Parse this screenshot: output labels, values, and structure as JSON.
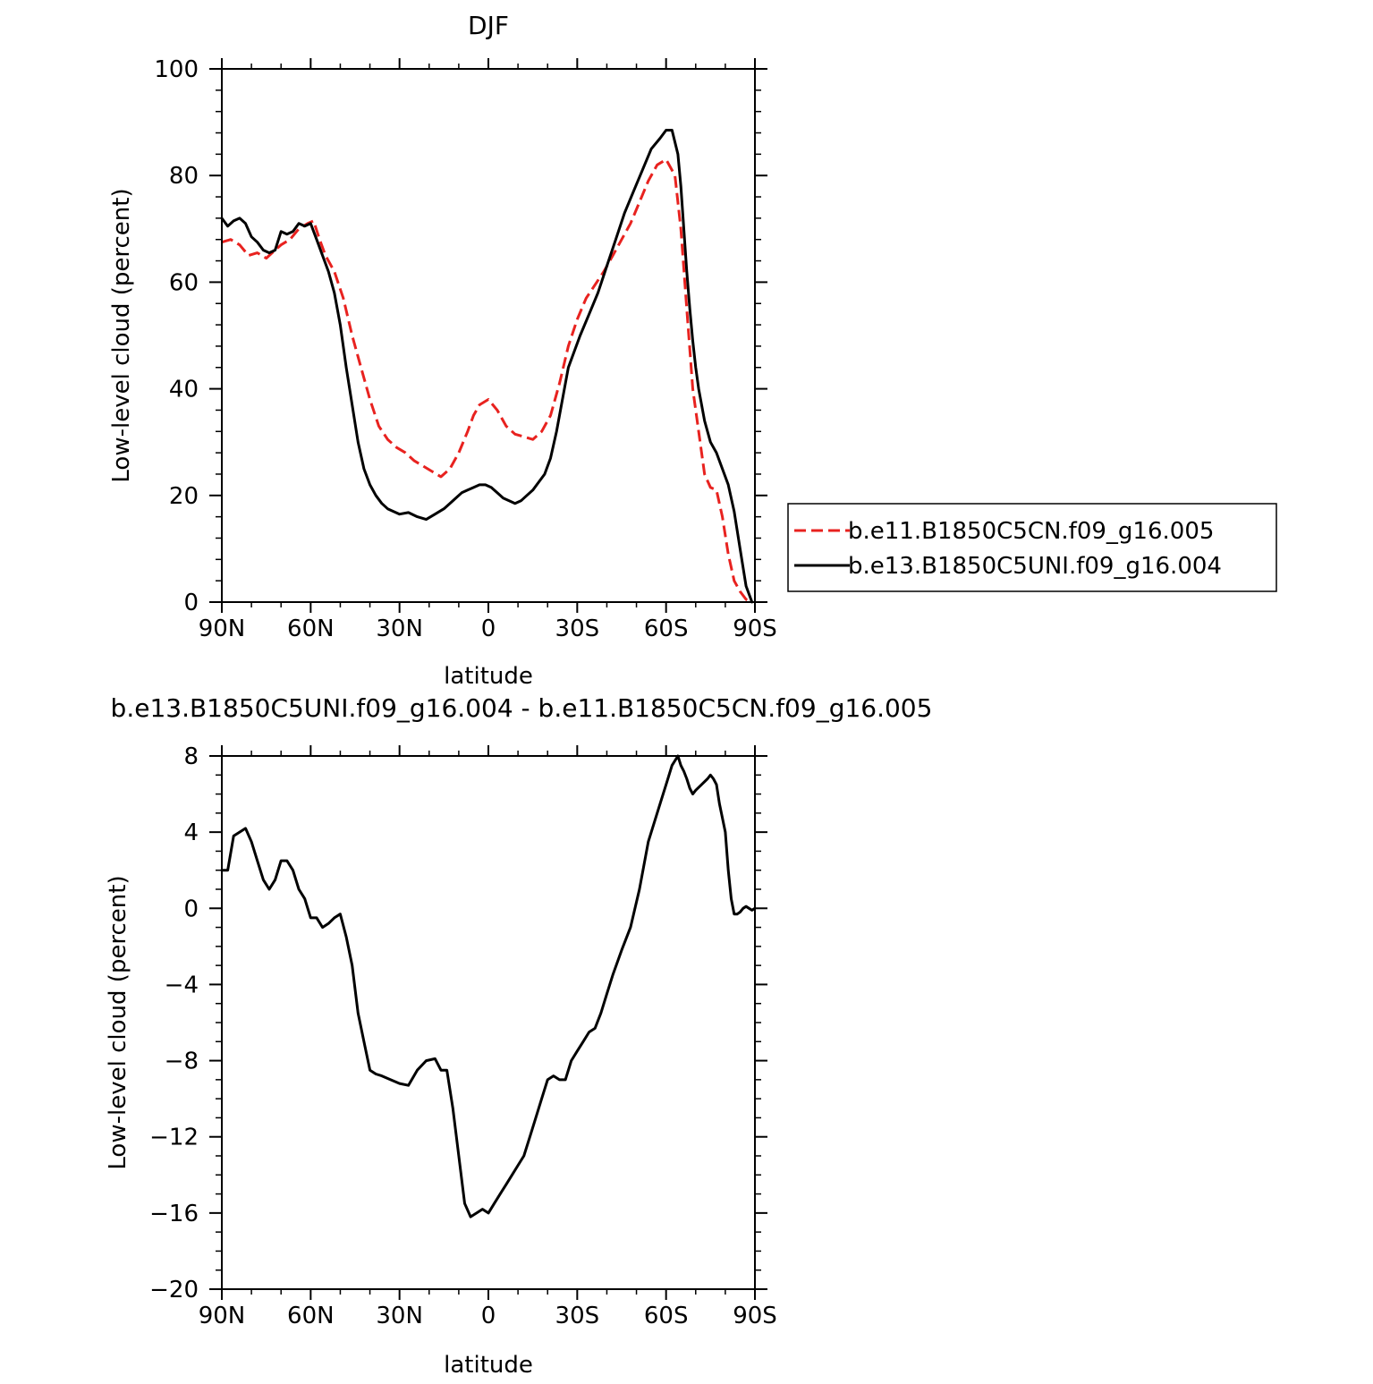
{
  "chart_data": [
    {
      "type": "line",
      "title": "DJF",
      "xlabel": "latitude",
      "ylabel": "Low-level cloud (percent)",
      "xlim": [
        90,
        -90
      ],
      "ylim": [
        0,
        100
      ],
      "x_ticks": [
        {
          "value": 90,
          "label": "90N"
        },
        {
          "value": 60,
          "label": "60N"
        },
        {
          "value": 30,
          "label": "30N"
        },
        {
          "value": 0,
          "label": "0"
        },
        {
          "value": -30,
          "label": "30S"
        },
        {
          "value": -60,
          "label": "60S"
        },
        {
          "value": -90,
          "label": "90S"
        }
      ],
      "y_ticks": [
        {
          "value": 0,
          "label": "0"
        },
        {
          "value": 20,
          "label": "20"
        },
        {
          "value": 40,
          "label": "40"
        },
        {
          "value": 60,
          "label": "60"
        },
        {
          "value": 80,
          "label": "80"
        },
        {
          "value": 100,
          "label": "100"
        }
      ],
      "legend_position": "right",
      "series": [
        {
          "name": "b.e11.B1850C5CN.f09_g16.005",
          "color": "#e8221f",
          "dash": "dashed",
          "x": [
            90,
            87,
            84,
            81,
            78,
            75,
            72,
            70,
            67,
            64,
            61,
            59,
            57,
            55,
            52,
            49,
            46,
            43,
            40,
            37,
            34,
            31,
            28,
            25,
            22,
            19,
            16,
            13,
            10,
            7,
            5,
            3,
            0,
            -3,
            -6,
            -9,
            -12,
            -15,
            -18,
            -21,
            -24,
            -27,
            -30,
            -33,
            -36,
            -39,
            -42,
            -45,
            -48,
            -51,
            -54,
            -57,
            -60,
            -63,
            -65,
            -67,
            -69,
            -71,
            -73,
            -75,
            -77,
            -79,
            -81,
            -83,
            -85,
            -87,
            -89
          ],
          "values": [
            67.5,
            68,
            67,
            65,
            65.5,
            64.5,
            66,
            67,
            68,
            70,
            71,
            71.5,
            68,
            65,
            62,
            57,
            50,
            44,
            38,
            33,
            30.5,
            29,
            28,
            26.5,
            25.5,
            24.5,
            23.5,
            25,
            28,
            32,
            35,
            37,
            38,
            36,
            33,
            31.5,
            31,
            30.5,
            32,
            35,
            41,
            48,
            53,
            57,
            59.5,
            62,
            65,
            68,
            71,
            75,
            79,
            82,
            83,
            80,
            70,
            55,
            40,
            32,
            24,
            21.5,
            21,
            16,
            9,
            4,
            2,
            0.5,
            0
          ]
        },
        {
          "name": "b.e13.B1850C5UNI.f09_g16.004",
          "color": "#000000",
          "dash": "solid",
          "x": [
            90,
            88,
            86,
            84,
            82,
            80,
            78,
            76,
            74,
            72,
            70,
            68,
            66,
            64,
            62,
            60,
            58,
            56,
            54,
            52,
            50,
            48,
            46,
            44,
            42,
            40,
            38,
            36,
            34,
            32,
            30,
            27,
            24,
            21,
            18,
            15,
            13,
            11,
            9,
            7,
            5,
            3,
            1,
            -1,
            -3,
            -5,
            -7,
            -9,
            -11,
            -13,
            -15,
            -17,
            -19,
            -21,
            -23,
            -25,
            -27,
            -29,
            -31,
            -34,
            -37,
            -40,
            -43,
            -46,
            -49,
            -52,
            -55,
            -58,
            -60,
            -62,
            -64,
            -65,
            -66,
            -67,
            -68,
            -69,
            -70,
            -71,
            -72,
            -73,
            -75,
            -77,
            -79,
            -81,
            -83,
            -85,
            -87,
            -89
          ],
          "values": [
            72,
            70.5,
            71.5,
            72,
            71,
            68.5,
            67.5,
            66,
            65.5,
            66,
            69.5,
            69,
            69.5,
            71,
            70.5,
            71,
            68,
            65,
            62,
            58,
            52,
            44,
            37,
            30,
            25,
            22,
            20,
            18.5,
            17.5,
            17,
            16.5,
            16.8,
            16,
            15.5,
            16.5,
            17.5,
            18.5,
            19.5,
            20.5,
            21,
            21.5,
            22,
            22,
            21.5,
            20.5,
            19.5,
            19,
            18.5,
            19,
            20,
            21,
            22.5,
            24,
            27,
            32,
            38,
            44,
            47,
            50,
            54,
            58,
            63,
            68,
            73,
            77,
            81,
            85,
            87,
            88.5,
            88.5,
            84,
            78,
            70,
            62,
            55,
            49,
            44,
            40,
            37,
            34,
            30,
            28,
            25,
            22,
            17,
            10,
            3,
            0
          ]
        }
      ]
    },
    {
      "type": "line",
      "title": "b.e13.B1850C5UNI.f09_g16.004 - b.e11.B1850C5CN.f09_g16.005",
      "xlabel": "latitude",
      "ylabel": "Low-level cloud (percent)",
      "xlim": [
        90,
        -90
      ],
      "ylim": [
        -20,
        8
      ],
      "x_ticks": [
        {
          "value": 90,
          "label": "90N"
        },
        {
          "value": 60,
          "label": "60N"
        },
        {
          "value": 30,
          "label": "30N"
        },
        {
          "value": 0,
          "label": "0"
        },
        {
          "value": -30,
          "label": "30S"
        },
        {
          "value": -60,
          "label": "60S"
        },
        {
          "value": -90,
          "label": "90S"
        }
      ],
      "y_ticks": [
        {
          "value": -20,
          "label": "−20"
        },
        {
          "value": -16,
          "label": "−16"
        },
        {
          "value": -12,
          "label": "−12"
        },
        {
          "value": -8,
          "label": "−8"
        },
        {
          "value": -4,
          "label": "−4"
        },
        {
          "value": 0,
          "label": "0"
        },
        {
          "value": 4,
          "label": "4"
        },
        {
          "value": 8,
          "label": "8"
        }
      ],
      "series": [
        {
          "color": "#000000",
          "dash": "solid",
          "x": [
            90,
            88,
            86,
            84,
            82,
            80,
            78,
            76,
            74,
            72,
            70,
            68,
            66,
            64,
            62,
            60,
            58,
            56,
            54,
            52,
            50,
            48,
            46,
            44,
            42,
            40,
            38,
            36,
            33,
            30,
            27,
            24,
            21,
            18,
            16,
            14,
            12,
            10,
            8,
            6,
            4,
            2,
            0,
            -2,
            -4,
            -6,
            -8,
            -10,
            -12,
            -14,
            -16,
            -18,
            -20,
            -22,
            -24,
            -26,
            -28,
            -30,
            -32,
            -34,
            -36,
            -38,
            -40,
            -42,
            -45,
            -48,
            -51,
            -54,
            -57,
            -60,
            -62,
            -64,
            -65,
            -66,
            -67,
            -68,
            -69,
            -70,
            -72,
            -74,
            -75,
            -76,
            -77,
            -78,
            -80,
            -81,
            -82,
            -83,
            -84,
            -85,
            -86,
            -87,
            -88,
            -89,
            -90
          ],
          "values": [
            2,
            2,
            3.8,
            4,
            4.2,
            3.5,
            2.5,
            1.5,
            1,
            1.5,
            2.5,
            2.5,
            2,
            1,
            0.5,
            -0.5,
            -0.5,
            -1,
            -0.8,
            -0.5,
            -0.3,
            -1.5,
            -3,
            -5.5,
            -7,
            -8.5,
            -8.7,
            -8.8,
            -9,
            -9.2,
            -9.3,
            -8.5,
            -8,
            -7.9,
            -8.5,
            -8.5,
            -10.5,
            -13,
            -15.5,
            -16.2,
            -16,
            -15.8,
            -16,
            -15.5,
            -15,
            -14.5,
            -14,
            -13.5,
            -13,
            -12,
            -11,
            -10,
            -9,
            -8.8,
            -9,
            -9,
            -8,
            -7.5,
            -7,
            -6.5,
            -6.3,
            -5.5,
            -4.5,
            -3.5,
            -2.2,
            -1,
            1,
            3.5,
            5,
            6.5,
            7.5,
            8,
            7.5,
            7.2,
            6.8,
            6.3,
            6,
            6.2,
            6.5,
            6.8,
            7,
            6.8,
            6.5,
            5.5,
            4,
            2,
            0.5,
            -0.3,
            -0.3,
            -0.2,
            0,
            0.1,
            0,
            -0.1,
            0
          ]
        }
      ]
    }
  ]
}
